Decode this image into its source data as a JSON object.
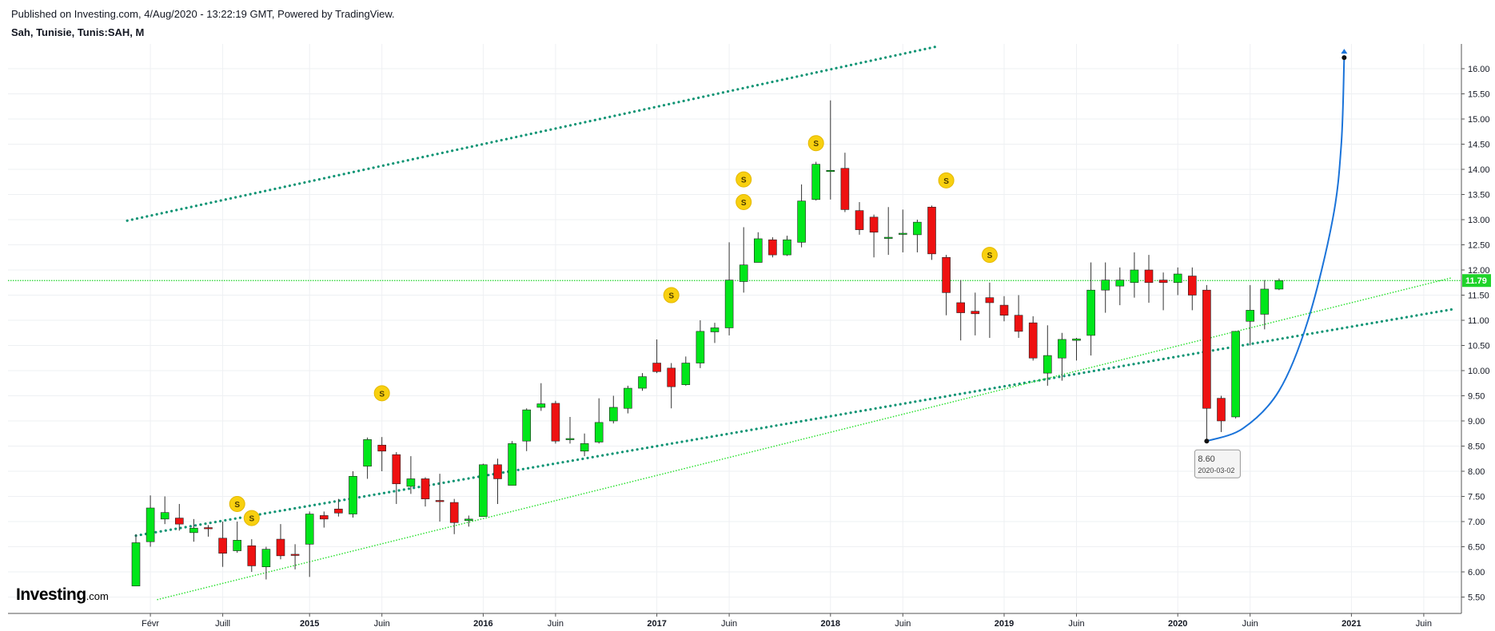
{
  "header": {
    "published": "Published on Investing.com, 4/Aug/2020 - 13:22:19 GMT, Powered by TradingView.",
    "symbol": "Sah, Tunisie, Tunis:SAH, M"
  },
  "logo": {
    "text": "Investing",
    "suffix": ".com"
  },
  "colors": {
    "up": "#00e61a",
    "down": "#ee1111",
    "channel": "#0e9474",
    "support": "#29e02f",
    "price_line": "#1fd32a",
    "projection": "#1a73d9",
    "dividend": "#f8d00f",
    "grid": "#eef0f3"
  },
  "chart_data": {
    "type": "candlestick",
    "interval": "M",
    "ylim": [
      5.3,
      16.35
    ],
    "y_ticks": [
      "5.50",
      "6.00",
      "6.50",
      "7.00",
      "7.50",
      "8.00",
      "8.50",
      "9.00",
      "9.50",
      "10.00",
      "10.50",
      "11.00",
      "11.50",
      "12.00",
      "12.50",
      "13.00",
      "13.50",
      "14.00",
      "14.50",
      "15.00",
      "15.50",
      "16.00"
    ],
    "x_labels": [
      {
        "label": "Févr",
        "month": 1,
        "bold": false
      },
      {
        "label": "Juill",
        "month": 6,
        "bold": false
      },
      {
        "label": "2015",
        "month": 12,
        "bold": true
      },
      {
        "label": "Juin",
        "month": 17,
        "bold": false
      },
      {
        "label": "2016",
        "month": 24,
        "bold": true
      },
      {
        "label": "Juin",
        "month": 29,
        "bold": false
      },
      {
        "label": "2017",
        "month": 36,
        "bold": true
      },
      {
        "label": "Juin",
        "month": 41,
        "bold": false
      },
      {
        "label": "2018",
        "month": 48,
        "bold": true
      },
      {
        "label": "Juin",
        "month": 53,
        "bold": false
      },
      {
        "label": "2019",
        "month": 60,
        "bold": true
      },
      {
        "label": "Juin",
        "month": 65,
        "bold": false
      },
      {
        "label": "2020",
        "month": 72,
        "bold": true
      },
      {
        "label": "Juin",
        "month": 77,
        "bold": false
      },
      {
        "label": "2021",
        "month": 84,
        "bold": true
      },
      {
        "label": "Juin",
        "month": 89,
        "bold": false
      }
    ],
    "candles": [
      {
        "m": 0,
        "o": 5.72,
        "h": 6.75,
        "l": 5.72,
        "c": 6.58
      },
      {
        "m": 1,
        "o": 6.6,
        "h": 7.52,
        "l": 6.5,
        "c": 7.27
      },
      {
        "m": 2,
        "o": 7.05,
        "h": 7.5,
        "l": 6.95,
        "c": 7.18
      },
      {
        "m": 3,
        "o": 7.07,
        "h": 7.35,
        "l": 6.82,
        "c": 6.95
      },
      {
        "m": 4,
        "o": 6.78,
        "h": 7.05,
        "l": 6.6,
        "c": 6.87
      },
      {
        "m": 5,
        "o": 6.88,
        "h": 6.93,
        "l": 6.7,
        "c": 6.87
      },
      {
        "m": 6,
        "o": 6.67,
        "h": 7.0,
        "l": 6.1,
        "c": 6.37
      },
      {
        "m": 7,
        "o": 6.42,
        "h": 7.0,
        "l": 6.38,
        "c": 6.63
      },
      {
        "m": 8,
        "o": 6.52,
        "h": 6.65,
        "l": 6.0,
        "c": 6.12
      },
      {
        "m": 9,
        "o": 6.1,
        "h": 6.5,
        "l": 5.85,
        "c": 6.45
      },
      {
        "m": 10,
        "o": 6.65,
        "h": 6.95,
        "l": 6.25,
        "c": 6.32
      },
      {
        "m": 11,
        "o": 6.35,
        "h": 6.55,
        "l": 6.05,
        "c": 6.33
      },
      {
        "m": 12,
        "o": 6.55,
        "h": 7.2,
        "l": 5.9,
        "c": 7.15
      },
      {
        "m": 13,
        "o": 7.12,
        "h": 7.2,
        "l": 6.88,
        "c": 7.05
      },
      {
        "m": 14,
        "o": 7.25,
        "h": 7.45,
        "l": 7.1,
        "c": 7.17
      },
      {
        "m": 15,
        "o": 7.15,
        "h": 8.0,
        "l": 7.08,
        "c": 7.9
      },
      {
        "m": 16,
        "o": 8.1,
        "h": 8.67,
        "l": 7.85,
        "c": 8.63
      },
      {
        "m": 17,
        "o": 8.52,
        "h": 8.68,
        "l": 8.0,
        "c": 8.4
      },
      {
        "m": 18,
        "o": 8.33,
        "h": 8.38,
        "l": 7.35,
        "c": 7.75
      },
      {
        "m": 19,
        "o": 7.7,
        "h": 8.3,
        "l": 7.55,
        "c": 7.85
      },
      {
        "m": 20,
        "o": 7.85,
        "h": 7.88,
        "l": 7.3,
        "c": 7.45
      },
      {
        "m": 21,
        "o": 7.42,
        "h": 7.95,
        "l": 7.0,
        "c": 7.4
      },
      {
        "m": 22,
        "o": 7.38,
        "h": 7.45,
        "l": 6.75,
        "c": 6.98
      },
      {
        "m": 23,
        "o": 7.02,
        "h": 7.12,
        "l": 6.9,
        "c": 7.05
      },
      {
        "m": 24,
        "o": 7.1,
        "h": 8.15,
        "l": 7.1,
        "c": 8.13
      },
      {
        "m": 25,
        "o": 8.13,
        "h": 8.25,
        "l": 7.35,
        "c": 7.85
      },
      {
        "m": 26,
        "o": 7.72,
        "h": 8.6,
        "l": 7.72,
        "c": 8.55
      },
      {
        "m": 27,
        "o": 8.6,
        "h": 9.25,
        "l": 8.4,
        "c": 9.22
      },
      {
        "m": 28,
        "o": 9.27,
        "h": 9.75,
        "l": 9.2,
        "c": 9.34
      },
      {
        "m": 29,
        "o": 9.35,
        "h": 9.4,
        "l": 8.55,
        "c": 8.6
      },
      {
        "m": 30,
        "o": 8.65,
        "h": 9.08,
        "l": 8.55,
        "c": 8.65
      },
      {
        "m": 31,
        "o": 8.4,
        "h": 8.75,
        "l": 8.3,
        "c": 8.55
      },
      {
        "m": 32,
        "o": 8.58,
        "h": 9.45,
        "l": 8.55,
        "c": 8.97
      },
      {
        "m": 33,
        "o": 9.0,
        "h": 9.5,
        "l": 8.95,
        "c": 9.27
      },
      {
        "m": 34,
        "o": 9.25,
        "h": 9.7,
        "l": 9.15,
        "c": 9.65
      },
      {
        "m": 35,
        "o": 9.65,
        "h": 9.95,
        "l": 9.6,
        "c": 9.88
      },
      {
        "m": 36,
        "o": 10.15,
        "h": 10.62,
        "l": 9.95,
        "c": 9.98
      },
      {
        "m": 37,
        "o": 10.05,
        "h": 10.15,
        "l": 9.25,
        "c": 9.68
      },
      {
        "m": 38,
        "o": 9.72,
        "h": 10.28,
        "l": 9.7,
        "c": 10.15
      },
      {
        "m": 39,
        "o": 10.15,
        "h": 11.0,
        "l": 10.05,
        "c": 10.78
      },
      {
        "m": 40,
        "o": 10.77,
        "h": 10.95,
        "l": 10.55,
        "c": 10.85
      },
      {
        "m": 41,
        "o": 10.85,
        "h": 12.55,
        "l": 10.7,
        "c": 11.8
      },
      {
        "m": 42,
        "o": 11.77,
        "h": 12.85,
        "l": 11.55,
        "c": 12.1
      },
      {
        "m": 43,
        "o": 12.15,
        "h": 12.75,
        "l": 12.15,
        "c": 12.62
      },
      {
        "m": 44,
        "o": 12.6,
        "h": 12.65,
        "l": 12.25,
        "c": 12.3
      },
      {
        "m": 45,
        "o": 12.3,
        "h": 12.68,
        "l": 12.28,
        "c": 12.6
      },
      {
        "m": 46,
        "o": 12.55,
        "h": 13.7,
        "l": 12.45,
        "c": 13.37
      },
      {
        "m": 47,
        "o": 13.4,
        "h": 14.15,
        "l": 13.38,
        "c": 14.1
      },
      {
        "m": 48,
        "o": 13.98,
        "h": 15.37,
        "l": 13.4,
        "c": 13.98
      },
      {
        "m": 49,
        "o": 14.02,
        "h": 14.33,
        "l": 13.15,
        "c": 13.2
      },
      {
        "m": 50,
        "o": 13.18,
        "h": 13.35,
        "l": 12.7,
        "c": 12.8
      },
      {
        "m": 51,
        "o": 13.05,
        "h": 13.1,
        "l": 12.25,
        "c": 12.75
      },
      {
        "m": 52,
        "o": 12.65,
        "h": 13.25,
        "l": 12.3,
        "c": 12.65
      },
      {
        "m": 53,
        "o": 12.73,
        "h": 13.2,
        "l": 12.35,
        "c": 12.73
      },
      {
        "m": 54,
        "o": 12.7,
        "h": 13.0,
        "l": 12.35,
        "c": 12.95
      },
      {
        "m": 55,
        "o": 13.25,
        "h": 13.28,
        "l": 12.2,
        "c": 12.32
      },
      {
        "m": 56,
        "o": 12.25,
        "h": 12.3,
        "l": 11.1,
        "c": 11.55
      },
      {
        "m": 57,
        "o": 11.35,
        "h": 11.8,
        "l": 10.6,
        "c": 11.15
      },
      {
        "m": 58,
        "o": 11.18,
        "h": 11.55,
        "l": 10.7,
        "c": 11.13
      },
      {
        "m": 59,
        "o": 11.45,
        "h": 11.75,
        "l": 10.65,
        "c": 11.35
      },
      {
        "m": 60,
        "o": 11.3,
        "h": 11.48,
        "l": 10.98,
        "c": 11.1
      },
      {
        "m": 61,
        "o": 11.1,
        "h": 11.5,
        "l": 10.65,
        "c": 10.78
      },
      {
        "m": 62,
        "o": 10.95,
        "h": 11.08,
        "l": 10.2,
        "c": 10.25
      },
      {
        "m": 63,
        "o": 9.95,
        "h": 10.9,
        "l": 9.7,
        "c": 10.3
      },
      {
        "m": 64,
        "o": 10.25,
        "h": 10.75,
        "l": 9.8,
        "c": 10.62
      },
      {
        "m": 65,
        "o": 10.6,
        "h": 10.65,
        "l": 10.2,
        "c": 10.63
      },
      {
        "m": 66,
        "o": 10.7,
        "h": 12.15,
        "l": 10.3,
        "c": 11.6
      },
      {
        "m": 67,
        "o": 11.6,
        "h": 12.15,
        "l": 11.15,
        "c": 11.8
      },
      {
        "m": 68,
        "o": 11.68,
        "h": 12.05,
        "l": 11.3,
        "c": 11.8
      },
      {
        "m": 69,
        "o": 11.75,
        "h": 12.35,
        "l": 11.45,
        "c": 12.0
      },
      {
        "m": 70,
        "o": 12.0,
        "h": 12.3,
        "l": 11.35,
        "c": 11.75
      },
      {
        "m": 71,
        "o": 11.8,
        "h": 11.95,
        "l": 11.2,
        "c": 11.75
      },
      {
        "m": 72,
        "o": 11.75,
        "h": 12.05,
        "l": 11.5,
        "c": 11.92
      },
      {
        "m": 73,
        "o": 11.88,
        "h": 12.05,
        "l": 11.2,
        "c": 11.5
      },
      {
        "m": 74,
        "o": 11.6,
        "h": 11.7,
        "l": 8.6,
        "c": 9.25
      },
      {
        "m": 75,
        "o": 9.45,
        "h": 9.5,
        "l": 8.78,
        "c": 9.0
      },
      {
        "m": 76,
        "o": 9.08,
        "h": 10.78,
        "l": 9.05,
        "c": 10.78
      },
      {
        "m": 77,
        "o": 10.98,
        "h": 11.7,
        "l": 10.5,
        "c": 11.2
      },
      {
        "m": 78,
        "o": 11.12,
        "h": 11.8,
        "l": 10.82,
        "c": 11.62
      },
      {
        "m": 79,
        "o": 11.62,
        "h": 11.83,
        "l": 11.6,
        "c": 11.79
      }
    ],
    "dividends": [
      {
        "m": 7,
        "y": 7.35,
        "label": "S"
      },
      {
        "m": 8,
        "y": 7.07,
        "label": "S"
      },
      {
        "m": 17,
        "y": 9.55,
        "label": "S"
      },
      {
        "m": 37,
        "y": 11.5,
        "label": "S"
      },
      {
        "m": 42,
        "y": 13.35,
        "label": "S"
      },
      {
        "m": 42,
        "y": 13.8,
        "label": "S"
      },
      {
        "m": 47,
        "y": 14.52,
        "label": "S"
      },
      {
        "m": 56,
        "y": 13.78,
        "label": "S"
      },
      {
        "m": 59,
        "y": 12.3,
        "label": "S"
      }
    ],
    "last_price": "11.79",
    "low_annotation": {
      "m": 74,
      "price": "8.60",
      "date": "2020-03-02",
      "y": 8.6
    },
    "trendlines": [
      {
        "name": "upper-channel",
        "style": "teal-dotted",
        "from": [
          -0.6,
          12.98
        ],
        "to": [
          55.5,
          16.45
        ]
      },
      {
        "name": "lower-channel",
        "style": "teal-dotted",
        "from": [
          0.0,
          6.72
        ],
        "to": [
          91.0,
          11.22
        ]
      },
      {
        "name": "support-line",
        "style": "green-dotted",
        "from": [
          1.5,
          5.45
        ],
        "to": [
          91.0,
          11.85
        ]
      },
      {
        "name": "last-price-line",
        "style": "green-horizontal",
        "from": [
          -8,
          11.79
        ],
        "to": [
          91.5,
          11.79
        ]
      }
    ],
    "projection": [
      {
        "m": 74.0,
        "y": 8.6
      },
      {
        "m": 76.5,
        "y": 8.85
      },
      {
        "m": 79.0,
        "y": 9.6
      },
      {
        "m": 81.0,
        "y": 11.0
      },
      {
        "m": 82.7,
        "y": 13.0
      },
      {
        "m": 83.3,
        "y": 14.5
      },
      {
        "m": 83.5,
        "y": 16.22
      }
    ]
  }
}
